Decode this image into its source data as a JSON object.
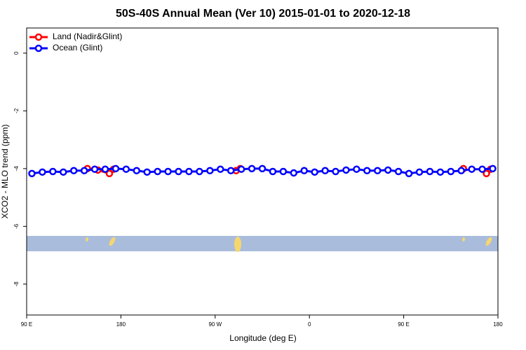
{
  "chart_data": {
    "type": "line",
    "title": "50S-40S Annual Mean (Ver 10)   2015-01-01 to 2020-12-18",
    "x_label": "Longitude (deg E)",
    "y_label": "XCO2 - MLO trend (ppm)",
    "xlim": [
      90,
      540
    ],
    "ylim": [
      -9.07,
      0.87
    ],
    "xticks": [
      {
        "value": 90,
        "label": "90 E"
      },
      180,
      {
        "value": 270,
        "label": "90 W"
      },
      {
        "value": 360,
        "label": "0"
      },
      {
        "value": 450,
        "label": "90 E"
      },
      {
        "value": 540,
        "label": "180"
      }
    ],
    "yticks": [
      0,
      -2,
      -4,
      -6,
      -8
    ],
    "legend": "upper left",
    "series": [
      {
        "name": "Land (Nadir&Glint)",
        "color": "#ff0000",
        "x": [
          148,
          158,
          169,
          173,
          null,
          290,
          294,
          null,
          507,
          null,
          529,
          533
        ],
        "values": [
          -4.0,
          -4.05,
          -4.17,
          -4.02,
          null,
          -4.07,
          -4.0,
          null,
          -4.0,
          null,
          -4.17,
          -4.02
        ]
      },
      {
        "name": "Ocean (Glint)",
        "color": "#0000ff",
        "x": [
          95,
          105,
          115,
          125,
          135,
          145,
          155,
          165,
          175,
          185,
          195,
          205,
          215,
          225,
          235,
          245,
          255,
          265,
          275,
          285,
          295,
          305,
          315,
          325,
          335,
          345,
          355,
          365,
          375,
          385,
          395,
          405,
          415,
          425,
          435,
          445,
          455,
          465,
          475,
          485,
          495,
          505,
          515,
          525,
          535
        ],
        "values": [
          -4.17,
          -4.12,
          -4.1,
          -4.12,
          -4.07,
          -4.07,
          -4.02,
          -4.02,
          -4.0,
          -4.02,
          -4.07,
          -4.12,
          -4.1,
          -4.1,
          -4.1,
          -4.1,
          -4.1,
          -4.07,
          -4.02,
          -4.07,
          -4.02,
          -4.0,
          -4.0,
          -4.1,
          -4.1,
          -4.15,
          -4.07,
          -4.12,
          -4.07,
          -4.1,
          -4.05,
          -4.02,
          -4.07,
          -4.07,
          -4.05,
          -4.1,
          -4.17,
          -4.12,
          -4.1,
          -4.12,
          -4.1,
          -4.07,
          -4.02,
          -4.02,
          -4.0
        ]
      }
    ]
  }
}
